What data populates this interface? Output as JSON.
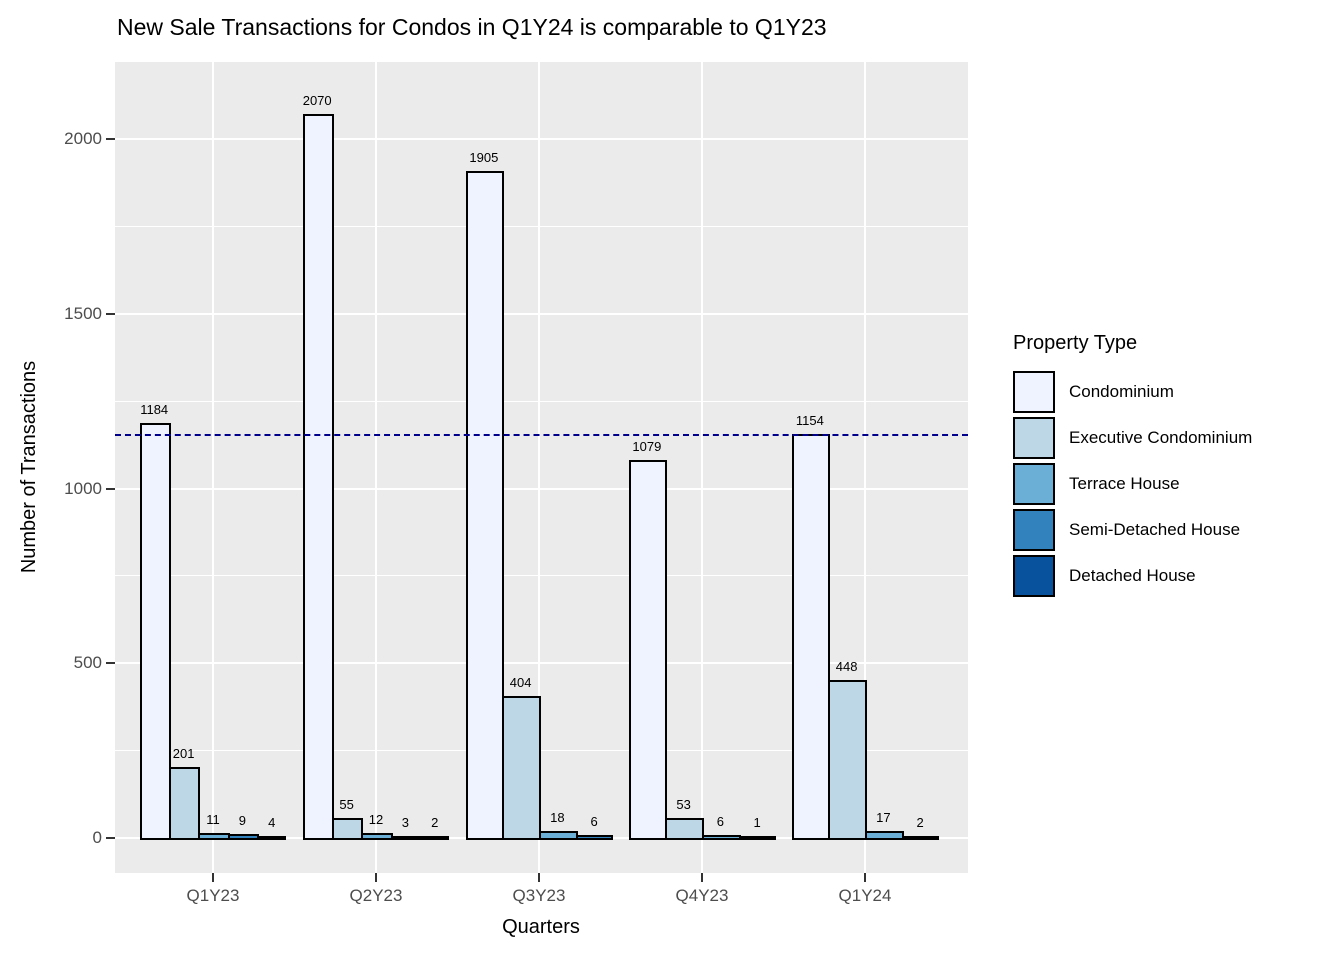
{
  "title": "New Sale Transactions for Condos in Q1Y24 is comparable to Q1Y23",
  "chart_data": {
    "type": "bar",
    "title": "New Sale Transactions for Condos in Q1Y24 is comparable to Q1Y23",
    "xlabel": "Quarters",
    "ylabel": "Number of Transactions",
    "categories": [
      "Q1Y23",
      "Q2Y23",
      "Q3Y23",
      "Q4Y23",
      "Q1Y24"
    ],
    "series": [
      {
        "name": "Condominium",
        "color": "#EFF3FF",
        "values": [
          1184,
          2070,
          1905,
          1079,
          1154
        ]
      },
      {
        "name": "Executive Condominium",
        "color": "#BDD7E7",
        "values": [
          201,
          55,
          404,
          53,
          448
        ]
      },
      {
        "name": "Terrace House",
        "color": "#6BAED6",
        "values": [
          11,
          12,
          18,
          6,
          17
        ]
      },
      {
        "name": "Semi-Detached House",
        "color": "#3182BD",
        "values": [
          9,
          3,
          6,
          1,
          2
        ]
      },
      {
        "name": "Detached House",
        "color": "#08519C",
        "values": [
          4,
          2,
          null,
          null,
          null
        ]
      }
    ],
    "bar_labels_shown": true,
    "y_ticks": [
      0,
      500,
      1000,
      1500,
      2000
    ],
    "ylim": [
      -103,
      2173
    ],
    "grid": true,
    "panel_background": "#EBEBEB",
    "gridline_color": "#FFFFFF",
    "axis_text_color": "#4D4D4D",
    "bar_outline_color": "#000000",
    "reference_line": {
      "value": 1154,
      "style": "dashed",
      "color": "#00008B"
    },
    "legend_title": "Property Type",
    "legend_position": "right"
  }
}
